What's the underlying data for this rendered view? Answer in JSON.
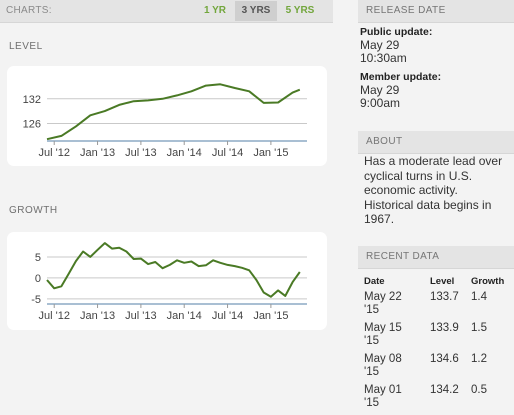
{
  "header": {
    "charts_label": "CHARTS:",
    "ranges": [
      "1 YR",
      "3 YRS",
      "5 YRS"
    ],
    "active_range": "3 YRS"
  },
  "colors": {
    "line": "#4a7a25",
    "accent": "#72a63c",
    "panel_header": "#e4e4e4"
  },
  "chart_data": [
    {
      "type": "line",
      "title": "LEVEL",
      "x_ticks": [
        "Jul '12",
        "Jan '13",
        "Jul '13",
        "Jan '14",
        "Jul '14",
        "Jan '15"
      ],
      "y_ticks": [
        126,
        132
      ],
      "ylim": [
        122,
        138
      ],
      "xlim": [
        "2012-06",
        "2015-06"
      ],
      "x": [
        "2012-06",
        "2012-08",
        "2012-10",
        "2012-12",
        "2013-02",
        "2013-04",
        "2013-06",
        "2013-08",
        "2013-10",
        "2013-12",
        "2014-02",
        "2014-04",
        "2014-06",
        "2014-08",
        "2014-10",
        "2014-12",
        "2015-02",
        "2015-04",
        "2015-05"
      ],
      "y": [
        122.2,
        123.0,
        125.3,
        128.0,
        129.0,
        130.5,
        131.4,
        131.6,
        132.0,
        132.8,
        133.8,
        135.2,
        135.5,
        134.6,
        133.8,
        131.0,
        131.1,
        133.5,
        134.2
      ]
    },
    {
      "type": "line",
      "title": "GROWTH",
      "x_ticks": [
        "Jul '12",
        "Jan '13",
        "Jul '13",
        "Jan '14",
        "Jul '14",
        "Jan '15"
      ],
      "y_ticks": [
        -5,
        0,
        5
      ],
      "ylim": [
        -6,
        10
      ],
      "xlim": [
        "2012-06",
        "2015-06"
      ],
      "x": [
        "2012-06",
        "2012-07",
        "2012-08",
        "2012-09",
        "2012-10",
        "2012-11",
        "2012-12",
        "2013-01",
        "2013-02",
        "2013-03",
        "2013-04",
        "2013-05",
        "2013-06",
        "2013-07",
        "2013-08",
        "2013-09",
        "2013-10",
        "2013-11",
        "2013-12",
        "2014-01",
        "2014-02",
        "2014-03",
        "2014-04",
        "2014-05",
        "2014-06",
        "2014-07",
        "2014-08",
        "2014-09",
        "2014-10",
        "2014-11",
        "2014-12",
        "2015-01",
        "2015-02",
        "2015-03",
        "2015-04",
        "2015-05"
      ],
      "y": [
        -0.5,
        -2.5,
        -2.0,
        1.0,
        4.0,
        6.3,
        5.0,
        6.7,
        8.3,
        7.0,
        7.2,
        6.3,
        4.5,
        4.6,
        3.3,
        3.8,
        2.3,
        3.1,
        4.2,
        3.6,
        3.9,
        2.8,
        3.0,
        4.2,
        3.6,
        3.1,
        2.8,
        2.4,
        1.8,
        -0.5,
        -3.5,
        -4.5,
        -3.0,
        -4.3,
        -1.0,
        1.4
      ]
    }
  ],
  "release": {
    "title": "RELEASE DATE",
    "public_label": "Public update:",
    "public_date": "May 29",
    "public_time": "10:30am",
    "member_label": "Member update:",
    "member_date": "May 29",
    "member_time": "9:00am"
  },
  "about": {
    "title": "ABOUT",
    "text": "Has a moderate lead over cyclical turns in U.S. economic activity. Historical data begins in 1967."
  },
  "recent": {
    "title": "RECENT DATA",
    "headers": [
      "Date",
      "Level",
      "Growth"
    ],
    "rows": [
      {
        "date_a": "May 22",
        "date_b": "'15",
        "level": "133.7",
        "growth": "1.4"
      },
      {
        "date_a": "May 15",
        "date_b": "'15",
        "level": "133.9",
        "growth": "1.5"
      },
      {
        "date_a": "May 08",
        "date_b": "'15",
        "level": "134.6",
        "growth": "1.2"
      },
      {
        "date_a": "May 01",
        "date_b": "'15",
        "level": "134.2",
        "growth": "0.5"
      }
    ]
  }
}
